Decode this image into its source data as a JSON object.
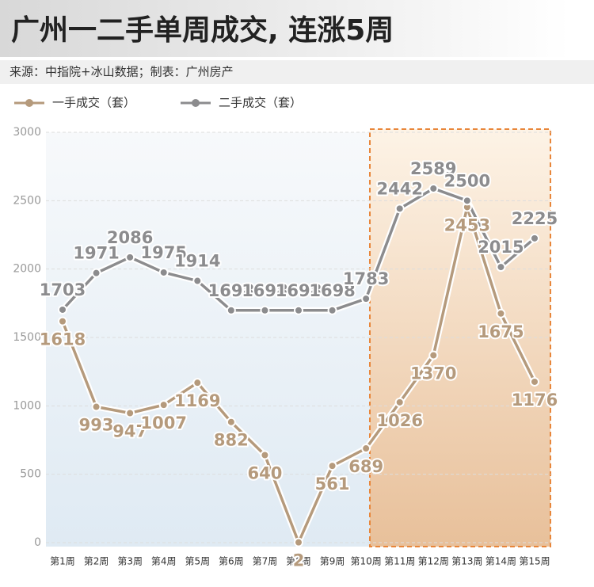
{
  "chart_data": {
    "type": "line",
    "title": "广州一二手单周成交, 连涨5周",
    "subtitle": "来源：中指院+冰山数据；制表：广州房产",
    "categories": [
      "第1周",
      "第2周",
      "第3周",
      "第4周",
      "第5周",
      "第6周",
      "第7周",
      "第8周",
      "第9周",
      "第10周",
      "第11周",
      "第12周",
      "第13周",
      "第14周",
      "第15周"
    ],
    "series": [
      {
        "name": "一手成交（套）",
        "color": "#b59a7c",
        "values": [
          1618,
          993,
          947,
          1007,
          1169,
          882,
          640,
          2,
          561,
          689,
          1026,
          1370,
          2453,
          1675,
          1176
        ]
      },
      {
        "name": "二手成交（套）",
        "color": "#8c8c8e",
        "values": [
          1703,
          1971,
          2086,
          1975,
          1914,
          1698,
          1698,
          1698,
          1698,
          1783,
          2442,
          2589,
          2500,
          2015,
          2225
        ]
      }
    ],
    "ylim": [
      0,
      3000
    ],
    "yticks": [
      0,
      500,
      1000,
      1500,
      2000,
      2500,
      3000
    ],
    "grid": true
  }
}
